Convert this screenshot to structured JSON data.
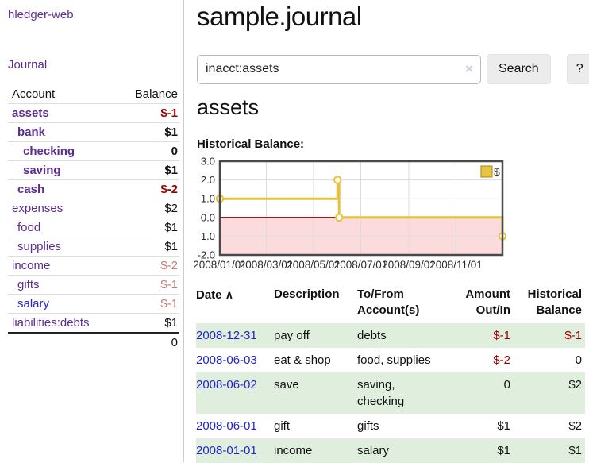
{
  "app": {
    "brand": "hledger-web"
  },
  "sidebar": {
    "journal_label": "Journal",
    "accounts_table": {
      "headers": {
        "account": "Account",
        "balance": "Balance"
      },
      "rows": [
        {
          "name": "assets",
          "balance": "$-1",
          "level": 1,
          "bold": true,
          "blue": false
        },
        {
          "name": "bank",
          "balance": "$1",
          "level": 2,
          "bold": true,
          "blue": false
        },
        {
          "name": "checking",
          "balance": "0",
          "level": 3,
          "bold": true,
          "blue": false
        },
        {
          "name": "saving",
          "balance": "$1",
          "level": 3,
          "bold": true,
          "blue": false
        },
        {
          "name": "cash",
          "balance": "$-2",
          "level": 2,
          "bold": true,
          "blue": false
        },
        {
          "name": "expenses",
          "balance": "$2",
          "level": 1,
          "bold": false,
          "blue": false
        },
        {
          "name": "food",
          "balance": "$1",
          "level": 2,
          "bold": false,
          "blue": false
        },
        {
          "name": "supplies",
          "balance": "$1",
          "level": 2,
          "bold": false,
          "blue": false
        },
        {
          "name": "income",
          "balance": "$-2",
          "level": 1,
          "bold": false,
          "blue": false
        },
        {
          "name": "gifts",
          "balance": "$-1",
          "level": 2,
          "bold": false,
          "blue": false
        },
        {
          "name": "salary",
          "balance": "$-1",
          "level": 2,
          "bold": false,
          "blue": true
        },
        {
          "name": "liabilities:debts",
          "balance": "$1",
          "level": 1,
          "bold": false,
          "blue": false
        }
      ],
      "total": "0"
    }
  },
  "header": {
    "title": "sample.journal"
  },
  "search": {
    "value": "inacct:assets",
    "clear_icon": "×",
    "button_label": "Search",
    "help_label": "?"
  },
  "account_page": {
    "heading": "assets",
    "chart_label": "Historical Balance:"
  },
  "chart_data": {
    "type": "line",
    "step": true,
    "title": "Historical Balance",
    "legend": [
      {
        "label": "$",
        "color": "#e8c53e"
      }
    ],
    "x_range": [
      "2008-01-01",
      "2008-12-31"
    ],
    "ylim": [
      -2,
      3
    ],
    "y_ticks": [
      3.0,
      2.0,
      1.0,
      0.0,
      -1.0,
      -2.0
    ],
    "x_ticks": [
      {
        "date": "2008-01-01",
        "label": "2008/01/01"
      },
      {
        "date": "2008-03-01",
        "label": "2008/03/01"
      },
      {
        "date": "2008-05-01",
        "label": "2008/05/01"
      },
      {
        "date": "2008-07-01",
        "label": "2008/07/01"
      },
      {
        "date": "2008-09-01",
        "label": "2008/09/01"
      },
      {
        "date": "2008-11-01",
        "label": "2008/11/01"
      }
    ],
    "points": [
      {
        "date": "2008-01-01",
        "value": 1
      },
      {
        "date": "2008-06-01",
        "value": 2
      },
      {
        "date": "2008-06-03",
        "value": 0
      },
      {
        "date": "2008-12-31",
        "value": -1
      }
    ],
    "line_color": "#e7c13d",
    "marker_fill": "#fffef4",
    "negative_fill": "#fbdbdb",
    "zero_line_color": "#8b0000",
    "grid_color": "#dcdcdc",
    "frame_color": "#4a4a4a",
    "legend_position": "top-right"
  },
  "register": {
    "headers": {
      "date": "Date",
      "sort_icon": "∧",
      "description": "Description",
      "accounts": [
        "To/From",
        "Account(s)"
      ],
      "amount": [
        "Amount",
        "Out/In"
      ],
      "balance": [
        "Historical",
        "Balance"
      ]
    },
    "rows": [
      {
        "date": "2008-12-31",
        "description": "pay off",
        "accounts": "debts",
        "amount": "$-1",
        "balance": "$-1"
      },
      {
        "date": "2008-06-03",
        "description": "eat & shop",
        "accounts": "food, supplies",
        "amount": "$-2",
        "balance": "0"
      },
      {
        "date": "2008-06-02",
        "description": "save",
        "accounts": "saving, checking",
        "amount": "0",
        "balance": "$2"
      },
      {
        "date": "2008-06-01",
        "description": "gift",
        "accounts": "gifts",
        "amount": "$1",
        "balance": "$2"
      },
      {
        "date": "2008-01-01",
        "description": "income",
        "accounts": "salary",
        "amount": "$1",
        "balance": "$1"
      }
    ]
  },
  "colors": {
    "accent_purple": "#5c2d91",
    "link_blue": "#2323cc",
    "negative_strong": "#990000",
    "negative_soft": "#c47a7a",
    "row_green": "#dfeedd"
  }
}
